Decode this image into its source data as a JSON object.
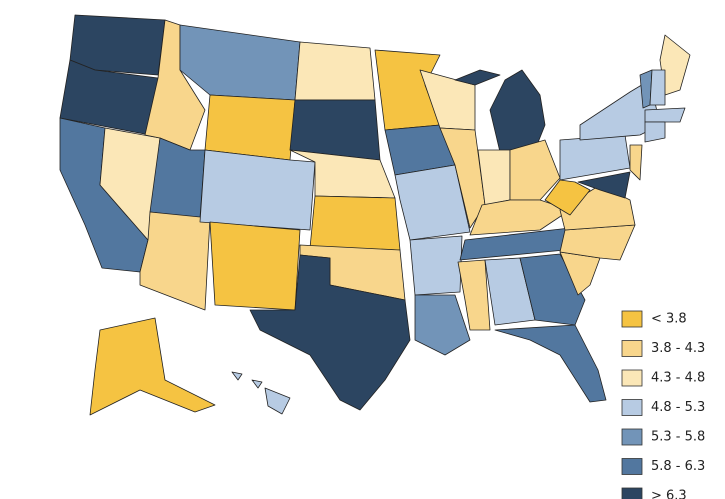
{
  "legend": {
    "items": [
      {
        "label": "< 3.8",
        "color": "#f5c342"
      },
      {
        "label": "3.8 - 4.3",
        "color": "#f8d68c"
      },
      {
        "label": "4.3 - 4.8",
        "color": "#fbe7b7"
      },
      {
        "label": "4.8 - 5.3",
        "color": "#b7cbe3"
      },
      {
        "label": "5.3 - 5.8",
        "color": "#7294b8"
      },
      {
        "label": "5.8 - 6.3",
        "color": "#52779f"
      },
      {
        "label": "> 6.3",
        "color": "#2c4561"
      }
    ]
  },
  "map": {
    "region_classes": [
      6,
      6,
      5,
      2,
      1,
      4,
      0,
      5,
      1,
      3,
      0,
      2,
      6,
      2,
      0,
      1,
      6,
      0,
      5,
      3,
      3,
      4,
      2,
      1,
      6,
      2,
      1,
      1,
      5,
      1,
      3,
      5,
      5,
      1,
      1,
      1,
      0,
      3,
      3,
      1,
      6,
      2,
      4,
      3,
      3,
      3,
      0,
      3
    ]
  }
}
